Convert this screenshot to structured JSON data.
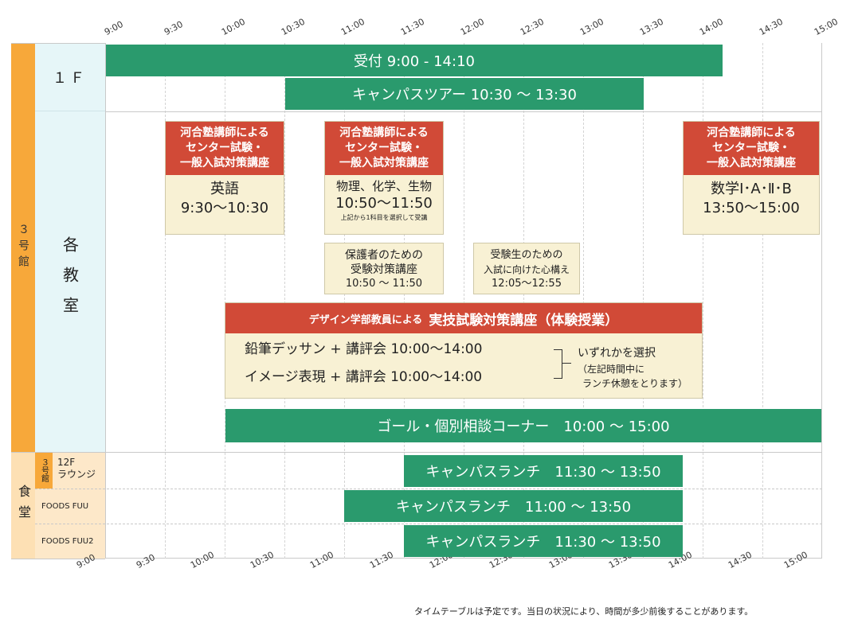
{
  "times": [
    "9:00",
    "9:30",
    "10:00",
    "10:30",
    "11:00",
    "11:30",
    "12:00",
    "12:30",
    "13:00",
    "13:30",
    "14:00",
    "14:30",
    "15:00"
  ],
  "sections": {
    "building3": "３号館",
    "floor1": "１Ｆ",
    "classrooms": "各教室",
    "cafeteria": "食堂",
    "building3_small": "３号館",
    "lounge": "12F\nラウンジ",
    "foods1": "FOODS FUU",
    "foods2": "FOODS FUU2"
  },
  "bars": {
    "reception": "受付 9:00 - 14:10",
    "campus_tour": "キャンパスツアー 10:30 〜 13:30",
    "goal": "ゴール・個別相談コーナー　10:00 〜 15:00",
    "lunch1": "キャンパスランチ　11:30 〜 13:50",
    "lunch2": "キャンパスランチ　11:00 〜 13:50",
    "lunch3": "キャンパスランチ　11:30 〜 13:50"
  },
  "lectures": {
    "english": {
      "head": "河合塾講師による\nセンター試験・\n一般入試対策講座",
      "subject": "英語",
      "time": "9:30〜10:30"
    },
    "science": {
      "head": "河合塾講師による\nセンター試験・\n一般入試対策講座",
      "subject": "物理、化学、生物",
      "time": "10:50〜11:50",
      "note": "上記から1科目を選択して受講"
    },
    "math": {
      "head": "河合塾講師による\nセンター試験・\n一般入試対策講座",
      "subject": "数学Ⅰ･A･Ⅱ･B",
      "time": "13:50〜15:00"
    }
  },
  "guardian": {
    "line1": "保護者のための",
    "line2": "受験対策講座",
    "time": "10:50 〜 11:50"
  },
  "student": {
    "line1": "受験生のための",
    "line2": "入試に向けた心構え",
    "time": "12:05〜12:55"
  },
  "design": {
    "head_small": "デザイン学部教員による",
    "head_big": "実技試験対策講座（体験授業）",
    "row1": "鉛筆デッサン + 講評会 10:00〜14:00",
    "row2": "イメージ表現 + 講評会 10:00〜14:00",
    "choose": "いずれかを選択",
    "note1": "（左記時間中に",
    "note2": "ランチ休憩をとります）"
  },
  "footer": "タイムテーブルは予定です。当日の状況により、時間が多少前後することがあります。",
  "colors": {
    "green": "#2a9a6d",
    "red": "#d14a37",
    "cream": "#f8f1d4",
    "orange": "#f7a83a",
    "light_cyan": "#e6f6f8",
    "peach": "#fde8c9"
  }
}
